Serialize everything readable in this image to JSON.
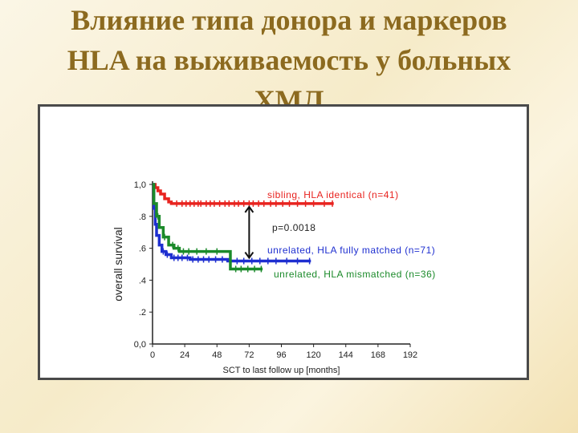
{
  "slide": {
    "title_line1": "Влияние типа донора и маркеров",
    "title_line2": "HLA на выживаемость у больных",
    "title_line3": "ХМЛ"
  },
  "chart_data": {
    "type": "line",
    "ylabel": "overall survival",
    "xlabel": "SCT to last follow up [months]",
    "xlim": [
      0,
      192
    ],
    "ylim": [
      0,
      1
    ],
    "x_ticks": [
      "0",
      "24",
      "48",
      "72",
      "96",
      "120",
      "144",
      "168",
      "192"
    ],
    "y_ticks": [
      "0,0",
      ".2",
      ".4",
      ".6",
      ".8",
      "1,0"
    ],
    "grid": false,
    "series": [
      {
        "name": "sibling, HLA identical (n=41)",
        "color": "#e8231f",
        "points": [
          [
            0,
            1.0
          ],
          [
            2,
            0.98
          ],
          [
            4,
            0.96
          ],
          [
            6,
            0.94
          ],
          [
            9,
            0.91
          ],
          [
            12,
            0.89
          ],
          [
            14,
            0.88
          ],
          [
            135,
            0.88
          ]
        ],
        "censor_x": [
          18,
          22,
          25,
          28,
          31,
          34,
          36,
          40,
          43,
          46,
          50,
          54,
          57,
          61,
          64,
          68,
          72,
          75,
          79,
          83,
          88,
          92,
          97,
          102,
          108,
          114,
          120,
          128,
          134
        ]
      },
      {
        "name": "unrelated, HLA fully matched (n=71)",
        "color": "#1e2fd0",
        "points": [
          [
            0,
            1.0
          ],
          [
            1,
            0.85
          ],
          [
            2,
            0.75
          ],
          [
            3,
            0.68
          ],
          [
            5,
            0.62
          ],
          [
            7,
            0.58
          ],
          [
            10,
            0.56
          ],
          [
            14,
            0.54
          ],
          [
            28,
            0.53
          ],
          [
            56,
            0.52
          ],
          [
            118,
            0.52
          ]
        ],
        "censor_x": [
          8,
          11,
          16,
          19,
          22,
          26,
          30,
          34,
          38,
          42,
          47,
          52,
          58,
          63,
          68,
          74,
          80,
          86,
          92,
          100,
          108,
          117
        ]
      },
      {
        "name": "unrelated, HLA mismatched (n=36)",
        "color": "#1b8a2a",
        "points": [
          [
            0,
            1.0
          ],
          [
            1,
            0.88
          ],
          [
            3,
            0.8
          ],
          [
            5,
            0.73
          ],
          [
            8,
            0.67
          ],
          [
            12,
            0.62
          ],
          [
            16,
            0.6
          ],
          [
            20,
            0.58
          ],
          [
            55,
            0.58
          ],
          [
            58,
            0.47
          ],
          [
            82,
            0.47
          ]
        ],
        "censor_x": [
          4,
          9,
          15,
          19,
          23,
          27,
          33,
          40,
          48,
          62,
          66,
          71,
          76,
          81
        ]
      }
    ],
    "annotations": [
      {
        "text": "sibling, HLA identical (n=41)",
        "color": "#e8231f"
      },
      {
        "text": "p=0.0018",
        "color": "#222222"
      },
      {
        "text": "unrelated, HLA fully matched (n=71)",
        "color": "#1e2fd0"
      },
      {
        "text": "unrelated, HLA mismatched (n=36)",
        "color": "#1b8a2a"
      }
    ]
  }
}
